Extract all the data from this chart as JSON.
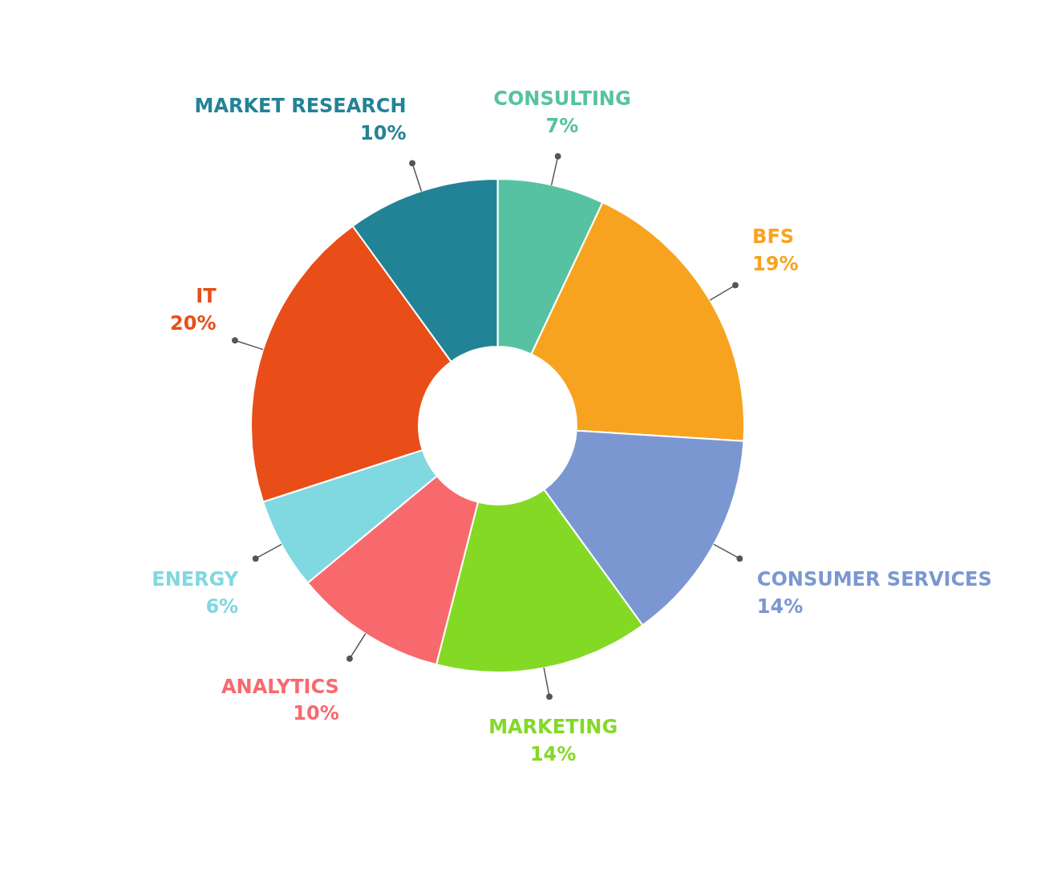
{
  "chart_data": {
    "type": "donut",
    "categories": [
      "CONSULTING",
      "BFS",
      "CONSUMER SERVICES",
      "MARKETING",
      "ANALYTICS",
      "ENERGY",
      "IT",
      "MARKET RESEARCH"
    ],
    "values": [
      7,
      19,
      14,
      14,
      10,
      6,
      20,
      10
    ],
    "value_labels": [
      "7%",
      "19%",
      "14%",
      "14%",
      "10%",
      "6%",
      "20%",
      "10%"
    ],
    "colors": [
      "#56c2a2",
      "#f8a320",
      "#7b97d2",
      "#84d925",
      "#f8696e",
      "#80d8e0",
      "#e94e18",
      "#238396"
    ],
    "legend": false
  }
}
